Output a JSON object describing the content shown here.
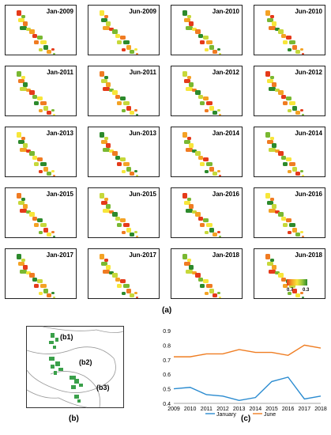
{
  "panels": [
    {
      "label": "Jan-2009"
    },
    {
      "label": "Jun-2009"
    },
    {
      "label": "Jan-2010"
    },
    {
      "label": "Jun-2010"
    },
    {
      "label": "Jan-2011"
    },
    {
      "label": "Jun-2011"
    },
    {
      "label": "Jan-2012"
    },
    {
      "label": "Jun-2012"
    },
    {
      "label": "Jan-2013"
    },
    {
      "label": "Jun-2013"
    },
    {
      "label": "Jan-2014"
    },
    {
      "label": "Jun-2014"
    },
    {
      "label": "Jan-2015"
    },
    {
      "label": "Jun-2015"
    },
    {
      "label": "Jan-2016"
    },
    {
      "label": "Jun-2016"
    },
    {
      "label": "Jan-2017"
    },
    {
      "label": "Jun-2017"
    },
    {
      "label": "Jan-2018"
    },
    {
      "label": "Jun-2018"
    }
  ],
  "legend": {
    "low": "0.7",
    "high": "0.3"
  },
  "captions": {
    "a": "(a)",
    "b": "(b)",
    "c": "(c)"
  },
  "regions": {
    "b1": "(b1)",
    "b2": "(b2)",
    "b3": "(b3)"
  },
  "colors": {
    "january": "#2a8bd0",
    "june": "#ef7d22"
  },
  "chart_data": {
    "type": "line",
    "x": [
      "2009",
      "2010",
      "2011",
      "2012",
      "2013",
      "2014",
      "2015",
      "2016",
      "2017",
      "2018"
    ],
    "ylim": [
      0.4,
      0.9
    ],
    "yticks": [
      "0.4",
      "0.5",
      "0.6",
      "0.7",
      "0.8",
      "0.9"
    ],
    "series": [
      {
        "name": "January",
        "values": [
          0.5,
          0.51,
          0.46,
          0.45,
          0.42,
          0.44,
          0.55,
          0.58,
          0.43,
          0.45
        ]
      },
      {
        "name": "June",
        "values": [
          0.72,
          0.72,
          0.74,
          0.74,
          0.77,
          0.75,
          0.75,
          0.73,
          0.8,
          0.78
        ]
      }
    ],
    "grid": false,
    "legend_position": "bottom"
  }
}
